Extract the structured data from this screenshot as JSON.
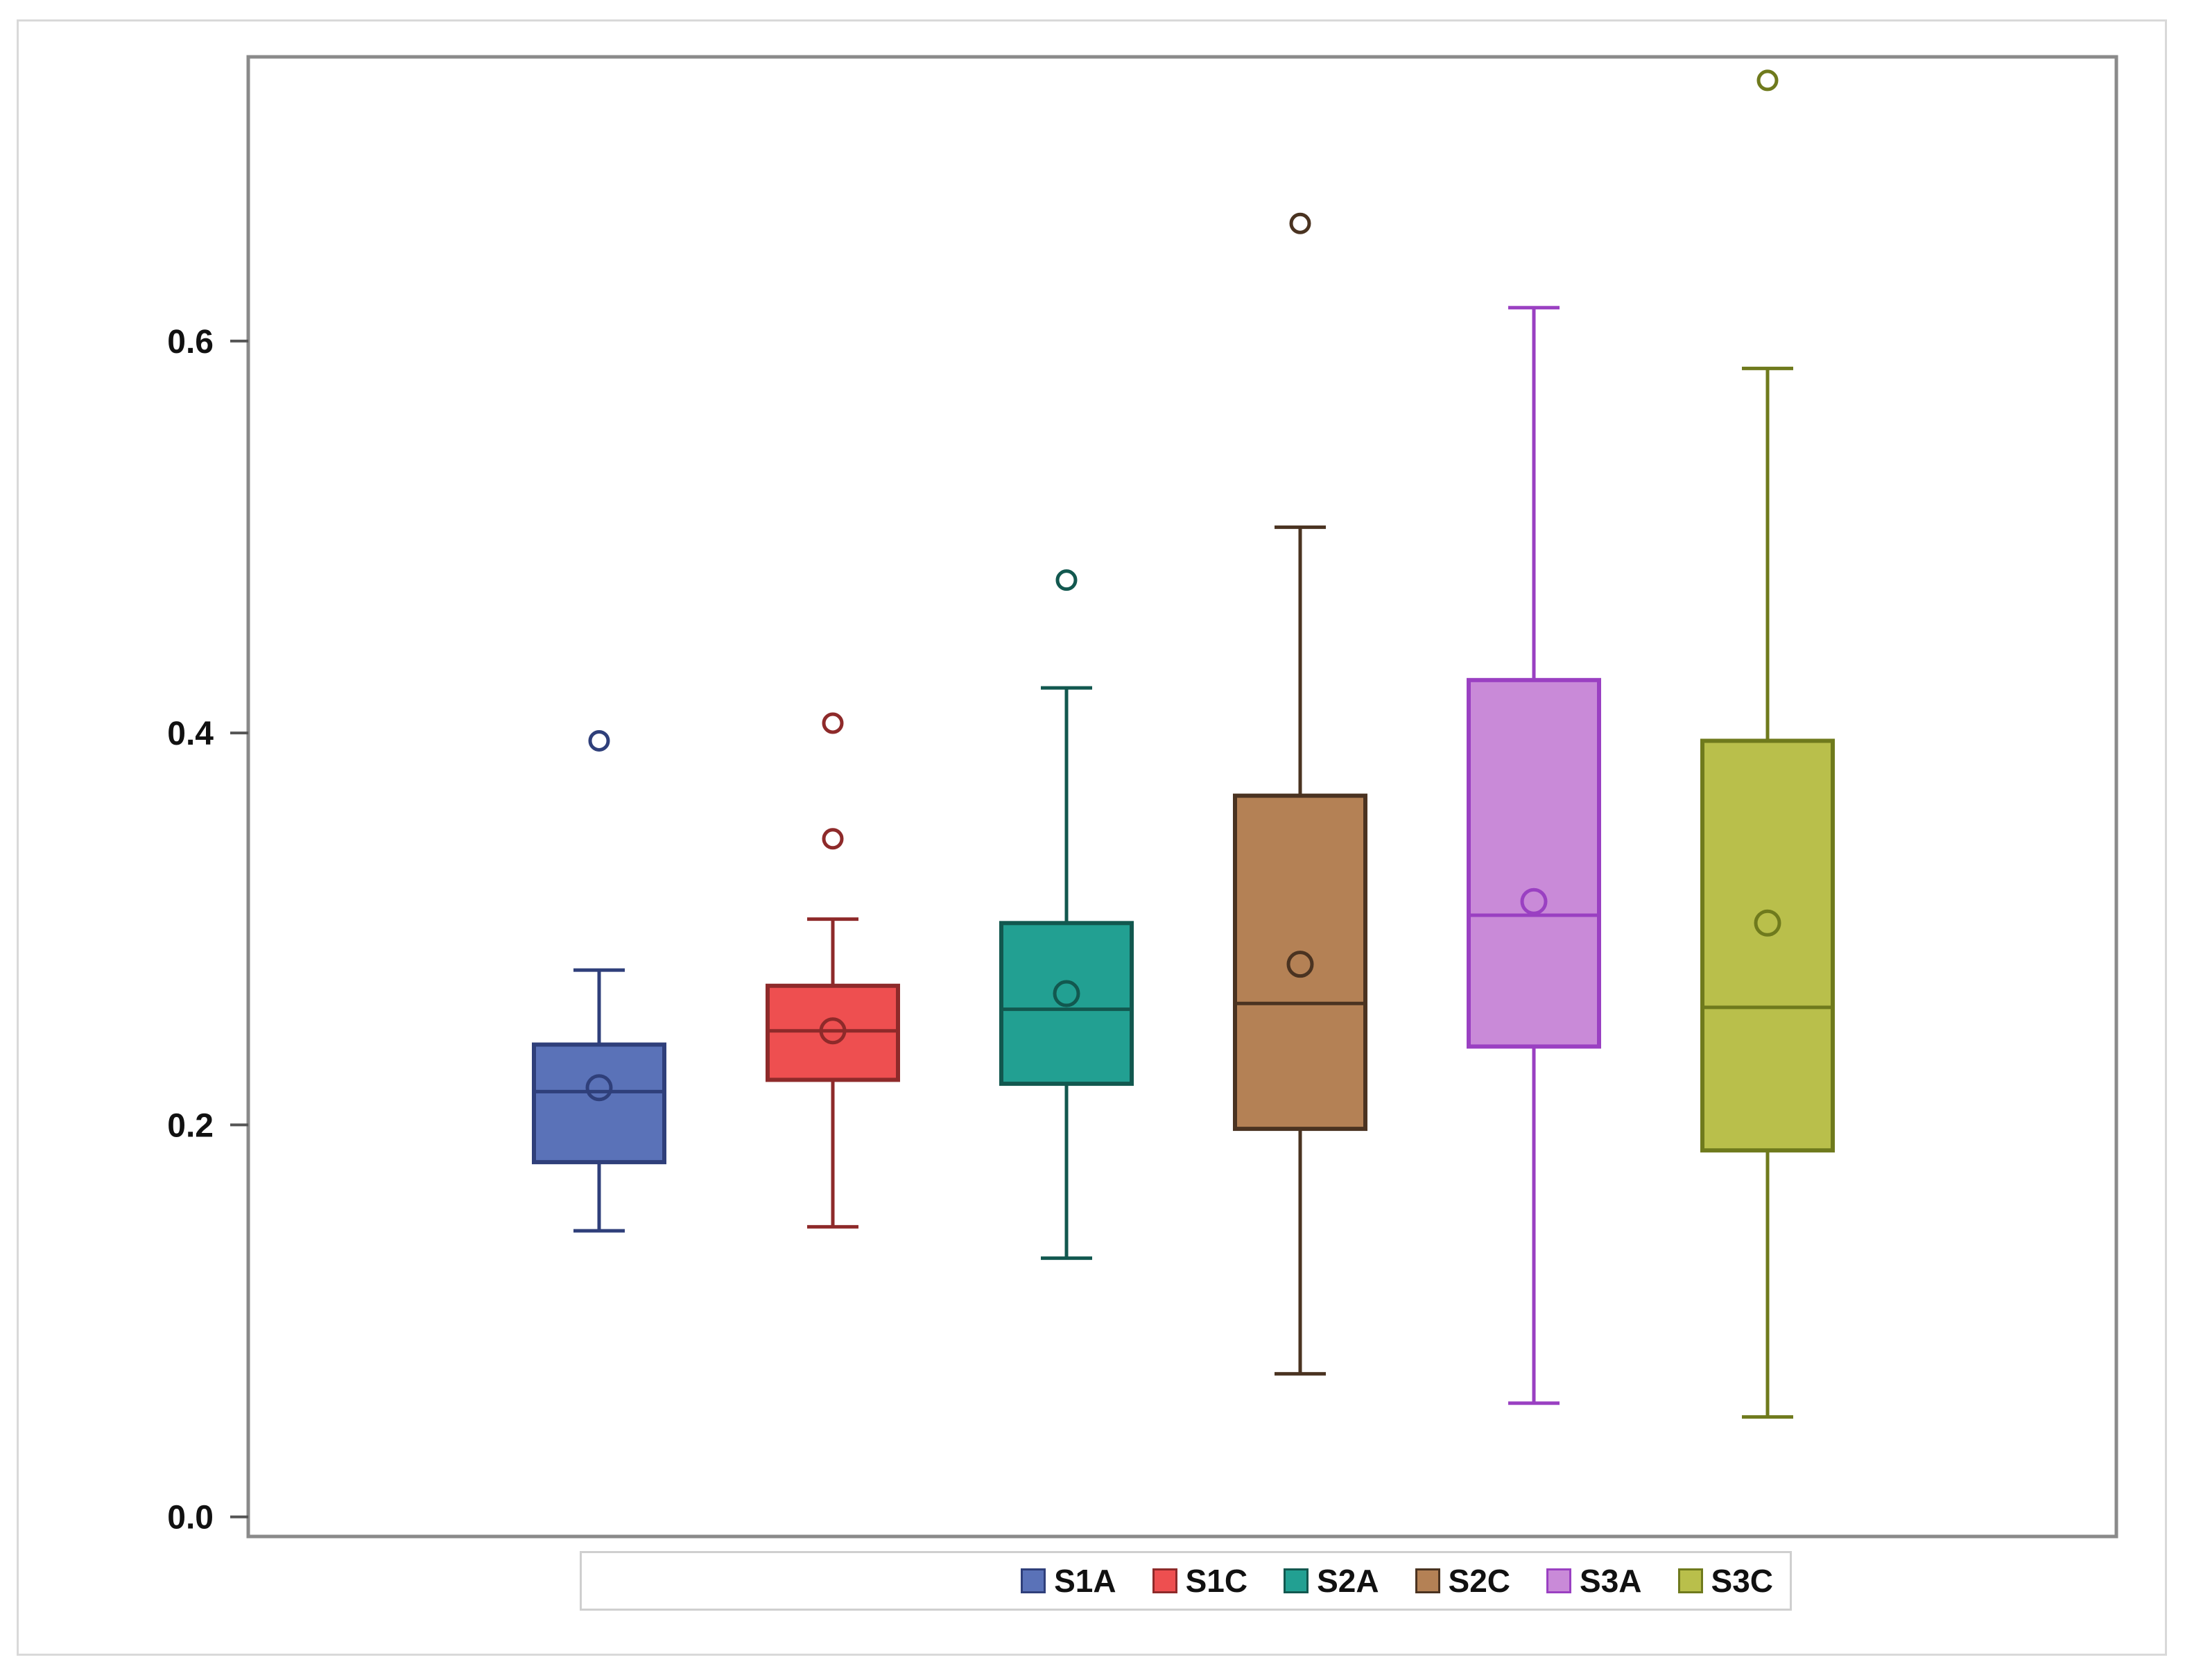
{
  "chart_data": {
    "type": "box",
    "title": "",
    "xlabel": "",
    "ylabel": "",
    "ylim": [
      -0.01,
      0.745
    ],
    "yticks": [
      "0.0",
      "0.2",
      "0.4",
      "0.6"
    ],
    "ytick_values": [
      0.0,
      0.2,
      0.4,
      0.6
    ],
    "legend_position": "bottom",
    "series": [
      {
        "name": "S1A",
        "color": "#5a72b8",
        "edge": "#2f3f7a",
        "min": 0.146,
        "q1": 0.181,
        "median": 0.217,
        "q3": 0.241,
        "max": 0.279,
        "mean": 0.219,
        "outliers": [
          0.396
        ]
      },
      {
        "name": "S1C",
        "color": "#ee4f50",
        "edge": "#8e2a2a",
        "min": 0.148,
        "q1": 0.223,
        "median": 0.248,
        "q3": 0.271,
        "max": 0.305,
        "mean": 0.248,
        "outliers": [
          0.405,
          0.346
        ]
      },
      {
        "name": "S2A",
        "color": "#22a092",
        "edge": "#12584f",
        "min": 0.132,
        "q1": 0.221,
        "median": 0.259,
        "q3": 0.303,
        "max": 0.423,
        "mean": 0.267,
        "outliers": [
          0.478
        ]
      },
      {
        "name": "S2C",
        "color": "#b48155",
        "edge": "#4a3321",
        "min": 0.073,
        "q1": 0.198,
        "median": 0.262,
        "q3": 0.368,
        "max": 0.505,
        "mean": 0.282,
        "outliers": [
          0.66
        ]
      },
      {
        "name": "S3A",
        "color": "#c98ad8",
        "edge": "#9a40c2",
        "min": 0.058,
        "q1": 0.24,
        "median": 0.307,
        "q3": 0.427,
        "max": 0.617,
        "mean": 0.314,
        "outliers": []
      },
      {
        "name": "S3C",
        "color": "#b9bf4b",
        "edge": "#6f7a1d",
        "min": 0.051,
        "q1": 0.187,
        "median": 0.26,
        "q3": 0.396,
        "max": 0.586,
        "mean": 0.303,
        "outliers": [
          0.733
        ]
      }
    ]
  }
}
